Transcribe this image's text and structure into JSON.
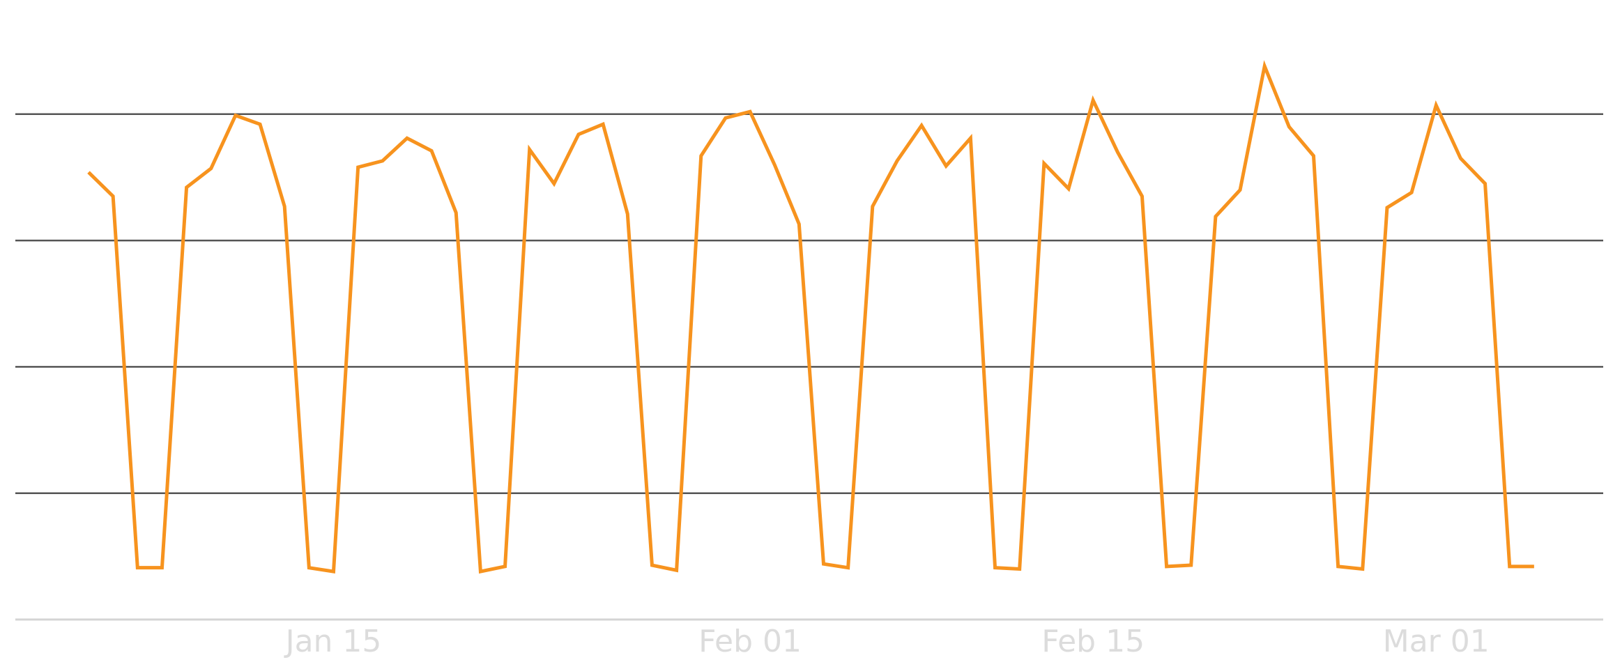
{
  "chart_data": {
    "type": "line",
    "color": "#f7931e",
    "grid": true,
    "ylim": [
      0,
      4.8
    ],
    "yticks": [
      1,
      2,
      3,
      4
    ],
    "categories": [
      null,
      null,
      null,
      null,
      null,
      null,
      null,
      null,
      null,
      null,
      "Jan 15",
      null,
      null,
      null,
      null,
      null,
      null,
      null,
      null,
      null,
      null,
      null,
      null,
      null,
      null,
      null,
      null,
      "Feb 01",
      null,
      null,
      null,
      null,
      null,
      null,
      null,
      null,
      null,
      null,
      null,
      null,
      null,
      "Feb 15",
      null,
      null,
      null,
      null,
      null,
      null,
      null,
      null,
      null,
      null,
      null,
      null,
      null,
      "Mar 01",
      null,
      null,
      null,
      null
    ],
    "values": [
      3.54,
      3.35,
      0.41,
      0.41,
      3.42,
      3.57,
      3.99,
      3.92,
      3.27,
      0.41,
      0.38,
      3.58,
      3.63,
      3.81,
      3.71,
      3.22,
      0.38,
      0.42,
      3.72,
      3.45,
      3.84,
      3.92,
      3.21,
      0.43,
      0.39,
      3.67,
      3.97,
      4.02,
      3.6,
      3.13,
      0.44,
      0.41,
      3.27,
      3.63,
      3.91,
      3.59,
      3.81,
      0.41,
      0.4,
      3.61,
      3.41,
      4.11,
      3.7,
      3.35,
      0.42,
      0.43,
      3.19,
      3.4,
      4.38,
      3.9,
      3.67,
      0.42,
      0.4,
      3.26,
      3.38,
      4.07,
      3.65,
      3.45,
      0.42,
      0.42
    ]
  }
}
